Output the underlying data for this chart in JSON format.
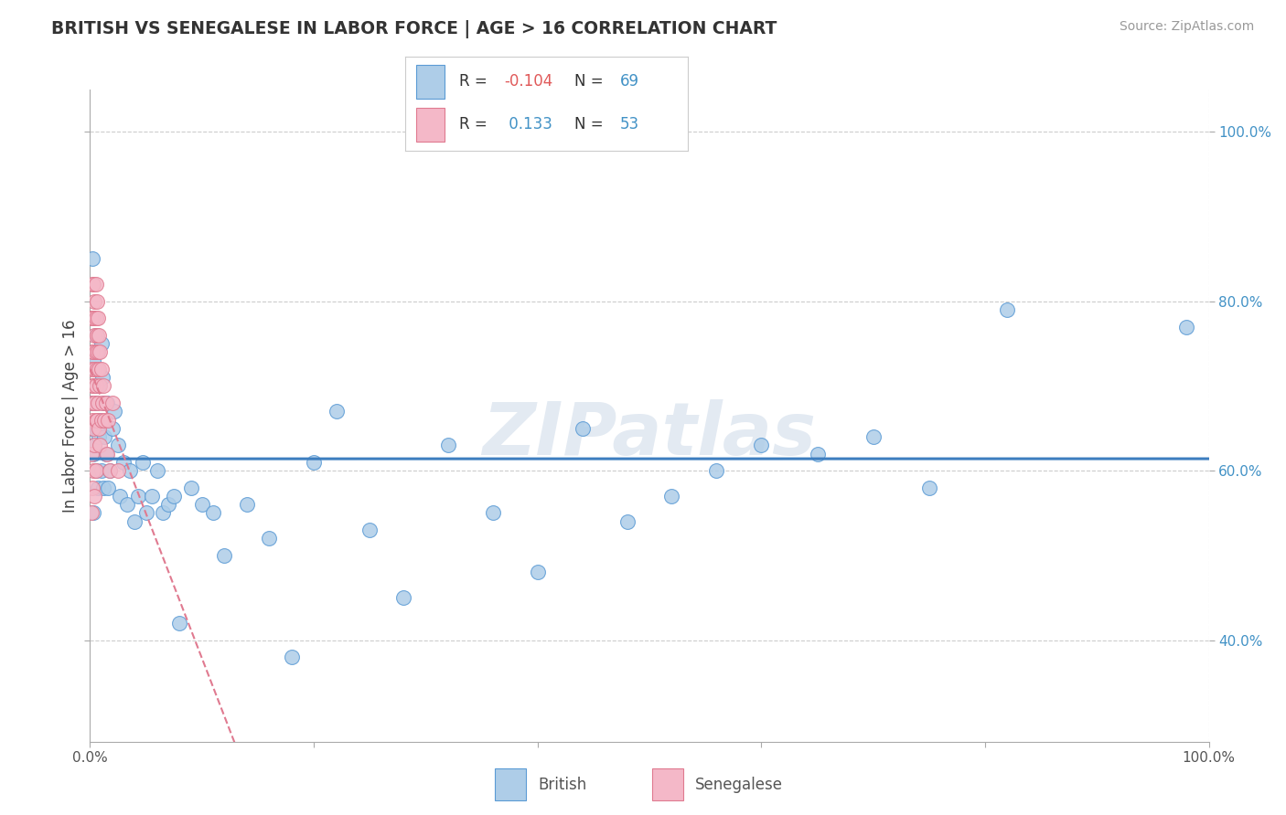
{
  "title": "BRITISH VS SENEGALESE IN LABOR FORCE | AGE > 16 CORRELATION CHART",
  "source": "Source: ZipAtlas.com",
  "ylabel": "In Labor Force | Age > 16",
  "xlim": [
    0.0,
    1.0
  ],
  "ylim": [
    0.28,
    1.05
  ],
  "ytick_positions": [
    0.4,
    0.6,
    0.8,
    1.0
  ],
  "yticklabels": [
    "40.0%",
    "60.0%",
    "80.0%",
    "100.0%"
  ],
  "british_R": -0.104,
  "british_N": 69,
  "senegalese_R": 0.133,
  "senegalese_N": 53,
  "british_color": "#aecde8",
  "british_edge": "#5b9bd5",
  "senegalese_color": "#f4b8c8",
  "senegalese_edge": "#e07a90",
  "british_line_color": "#3d7ebf",
  "senegalese_line_color": "#e07a90",
  "background_color": "#ffffff",
  "grid_color": "#cccccc",
  "watermark": "ZIPatlas",
  "british_x": [
    0.001,
    0.002,
    0.002,
    0.003,
    0.003,
    0.003,
    0.004,
    0.004,
    0.005,
    0.005,
    0.005,
    0.006,
    0.006,
    0.007,
    0.007,
    0.008,
    0.008,
    0.009,
    0.01,
    0.01,
    0.011,
    0.012,
    0.012,
    0.013,
    0.014,
    0.015,
    0.016,
    0.018,
    0.02,
    0.022,
    0.025,
    0.027,
    0.03,
    0.033,
    0.036,
    0.04,
    0.043,
    0.047,
    0.05,
    0.055,
    0.06,
    0.065,
    0.07,
    0.075,
    0.08,
    0.09,
    0.1,
    0.11,
    0.12,
    0.14,
    0.16,
    0.18,
    0.2,
    0.22,
    0.25,
    0.28,
    0.32,
    0.36,
    0.4,
    0.44,
    0.48,
    0.52,
    0.56,
    0.6,
    0.65,
    0.7,
    0.75,
    0.82,
    0.98
  ],
  "british_y": [
    0.68,
    0.85,
    0.65,
    0.73,
    0.62,
    0.55,
    0.7,
    0.63,
    0.76,
    0.68,
    0.6,
    0.74,
    0.65,
    0.72,
    0.58,
    0.7,
    0.64,
    0.66,
    0.75,
    0.6,
    0.71,
    0.68,
    0.58,
    0.64,
    0.62,
    0.68,
    0.58,
    0.6,
    0.65,
    0.67,
    0.63,
    0.57,
    0.61,
    0.56,
    0.6,
    0.54,
    0.57,
    0.61,
    0.55,
    0.57,
    0.6,
    0.55,
    0.56,
    0.57,
    0.42,
    0.58,
    0.56,
    0.55,
    0.5,
    0.56,
    0.52,
    0.38,
    0.61,
    0.67,
    0.53,
    0.45,
    0.63,
    0.55,
    0.48,
    0.65,
    0.54,
    0.57,
    0.6,
    0.63,
    0.62,
    0.64,
    0.58,
    0.79,
    0.77
  ],
  "senegalese_x": [
    0.001,
    0.001,
    0.001,
    0.001,
    0.001,
    0.002,
    0.002,
    0.002,
    0.002,
    0.002,
    0.002,
    0.003,
    0.003,
    0.003,
    0.003,
    0.003,
    0.003,
    0.004,
    0.004,
    0.004,
    0.004,
    0.004,
    0.004,
    0.005,
    0.005,
    0.005,
    0.005,
    0.005,
    0.005,
    0.006,
    0.006,
    0.006,
    0.006,
    0.007,
    0.007,
    0.007,
    0.008,
    0.008,
    0.008,
    0.009,
    0.009,
    0.009,
    0.01,
    0.01,
    0.011,
    0.012,
    0.013,
    0.014,
    0.015,
    0.016,
    0.018,
    0.02,
    0.025
  ],
  "senegalese_y": [
    0.72,
    0.78,
    0.68,
    0.62,
    0.55,
    0.82,
    0.78,
    0.74,
    0.7,
    0.66,
    0.58,
    0.82,
    0.78,
    0.74,
    0.7,
    0.65,
    0.6,
    0.8,
    0.76,
    0.72,
    0.68,
    0.63,
    0.57,
    0.82,
    0.78,
    0.74,
    0.7,
    0.66,
    0.6,
    0.8,
    0.76,
    0.72,
    0.66,
    0.78,
    0.74,
    0.68,
    0.76,
    0.72,
    0.65,
    0.74,
    0.7,
    0.63,
    0.72,
    0.66,
    0.68,
    0.7,
    0.66,
    0.68,
    0.62,
    0.66,
    0.6,
    0.68,
    0.6
  ]
}
